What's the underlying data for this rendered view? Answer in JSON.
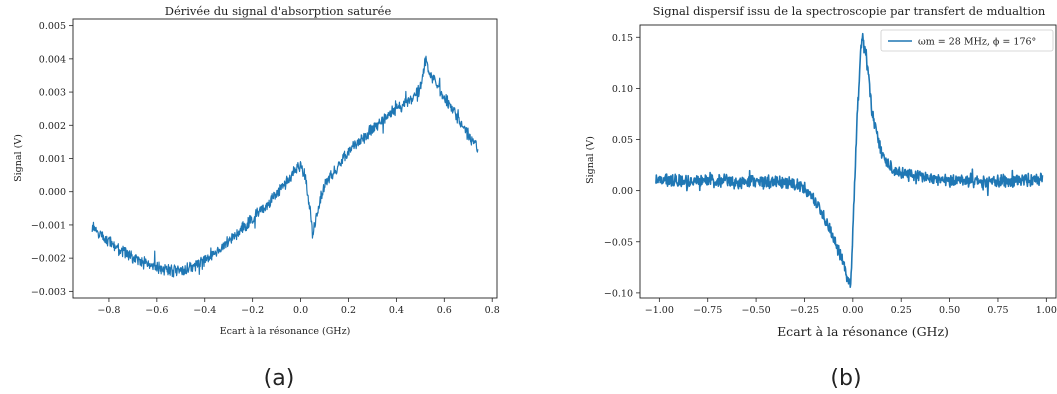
{
  "chart_data": [
    {
      "type": "line",
      "title": "Dérivée du signal d'absorption saturée",
      "xlabel": "Ecart à la résonance (GHz)",
      "ylabel": "Signal (V)",
      "xlim": [
        -0.95,
        0.82
      ],
      "ylim": [
        -0.0032,
        0.0052
      ],
      "xticks": [
        -0.8,
        -0.6,
        -0.4,
        -0.2,
        0.0,
        0.2,
        0.4,
        0.6,
        0.8
      ],
      "xtick_labels": [
        "−0.8",
        "−0.6",
        "−0.4",
        "−0.2",
        "0.0",
        "0.2",
        "0.4",
        "0.6",
        "0.8"
      ],
      "yticks": [
        -0.003,
        -0.002,
        -0.001,
        0.0,
        0.001,
        0.002,
        0.003,
        0.004,
        0.005
      ],
      "ytick_labels": [
        "−0.003",
        "−0.002",
        "−0.001",
        "0.000",
        "0.001",
        "0.002",
        "0.003",
        "0.004",
        "0.005"
      ],
      "grid": false,
      "legend": "none",
      "color": "#1f77b4",
      "noise_amplitude": 0.00022,
      "series": [
        {
          "x": [
            -0.87,
            -0.8,
            -0.7,
            -0.6,
            -0.5,
            -0.4,
            -0.3,
            -0.2,
            -0.1,
            -0.05,
            -0.02,
            0.0,
            0.02,
            0.04,
            0.05,
            0.07,
            0.1,
            0.15,
            0.2,
            0.3,
            0.4,
            0.45,
            0.5,
            0.52,
            0.55,
            0.6,
            0.65,
            0.7,
            0.74
          ],
          "values": [
            -0.0011,
            -0.0015,
            -0.002,
            -0.0023,
            -0.0024,
            -0.0021,
            -0.0015,
            -0.0008,
            -0.0001,
            0.0004,
            0.0007,
            0.0008,
            0.0005,
            -0.0006,
            -0.0013,
            -0.0006,
            0.0002,
            0.0007,
            0.0012,
            0.0019,
            0.0025,
            0.0027,
            0.0031,
            0.0039,
            0.0034,
            0.0029,
            0.0023,
            0.0017,
            0.0013
          ]
        }
      ]
    },
    {
      "type": "line",
      "title": "Signal dispersif issu de la spectroscopie par transfert de mdualtion",
      "xlabel": "Ecart à la résonance (GHz)",
      "ylabel": "Signal (V)",
      "xlim": [
        -1.1,
        1.05
      ],
      "ylim": [
        -0.105,
        0.162
      ],
      "xticks": [
        -1.0,
        -0.75,
        -0.5,
        -0.25,
        0.0,
        0.25,
        0.5,
        0.75,
        1.0
      ],
      "xtick_labels": [
        "−1.00",
        "−0.75",
        "−0.50",
        "−0.25",
        "0.00",
        "0.25",
        "0.50",
        "0.75",
        "1.00"
      ],
      "yticks": [
        -0.1,
        -0.05,
        0.0,
        0.05,
        0.1,
        0.15
      ],
      "ytick_labels": [
        "−0.10",
        "−0.05",
        "0.00",
        "0.05",
        "0.10",
        "0.15"
      ],
      "grid": false,
      "legend": "top-right",
      "color": "#1f77b4",
      "noise_amplitude": 0.0075,
      "series": [
        {
          "name": "ωm = 28 MHz, ϕ = 176°",
          "x": [
            -1.02,
            -0.8,
            -0.6,
            -0.4,
            -0.3,
            -0.25,
            -0.2,
            -0.15,
            -0.1,
            -0.05,
            -0.03,
            -0.01,
            0.0,
            0.02,
            0.04,
            0.05,
            0.07,
            0.1,
            0.15,
            0.2,
            0.3,
            0.5,
            0.7,
            0.9,
            0.98
          ],
          "values": [
            0.01,
            0.01,
            0.009,
            0.008,
            0.006,
            0.002,
            -0.01,
            -0.025,
            -0.045,
            -0.07,
            -0.085,
            -0.09,
            -0.04,
            0.06,
            0.135,
            0.148,
            0.13,
            0.075,
            0.035,
            0.022,
            0.014,
            0.01,
            0.009,
            0.01,
            0.011
          ]
        }
      ]
    }
  ],
  "captions": [
    "(a)",
    "(b)"
  ]
}
